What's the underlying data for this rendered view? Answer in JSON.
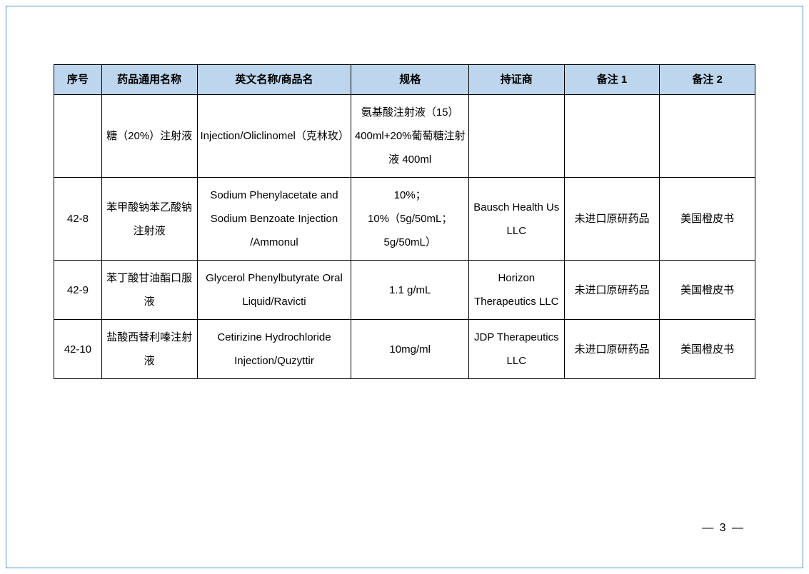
{
  "table": {
    "header_bg": "#bdd6ee",
    "border_color": "#000000",
    "columns": [
      {
        "key": "seq",
        "label": "序号",
        "width": "6.5%"
      },
      {
        "key": "generic",
        "label": "药品通用名称",
        "width": "13%"
      },
      {
        "key": "english",
        "label": "英文名称/商品名",
        "width": "21%"
      },
      {
        "key": "spec",
        "label": "规格",
        "width": "16%"
      },
      {
        "key": "holder",
        "label": "持证商",
        "width": "13%"
      },
      {
        "key": "note1",
        "label": "备注 1",
        "width": "13%"
      },
      {
        "key": "note2",
        "label": "备注 2",
        "width": "13%"
      }
    ],
    "rows": [
      {
        "seq": "",
        "generic": "糖（20%）注射液",
        "english": "Injection/Oliclinomel（克林玫）",
        "spec": "氨基酸注射液（15）400ml+20%葡萄糖注射液 400ml",
        "holder": "",
        "note1": "",
        "note2": ""
      },
      {
        "seq": "42-8",
        "generic": "苯甲酸钠苯乙酸钠注射液",
        "english": "Sodium Phenylacetate and Sodium Benzoate Injection /Ammonul",
        "spec": "10%；10%（5g/50mL；5g/50mL）",
        "holder": "Bausch Health Us LLC",
        "note1": "未进口原研药品",
        "note2": "美国橙皮书"
      },
      {
        "seq": "42-9",
        "generic": "苯丁酸甘油酯口服液",
        "english": "Glycerol Phenylbutyrate Oral Liquid/Ravicti",
        "spec": "1.1 g/mL",
        "holder": "Horizon Therapeutics LLC",
        "note1": "未进口原研药品",
        "note2": "美国橙皮书"
      },
      {
        "seq": "42-10",
        "generic": "盐酸西替利嗪注射液",
        "english": "Cetirizine Hydrochloride Injection/Quzyttir",
        "spec": "10mg/ml",
        "holder": "JDP Therapeutics LLC",
        "note1": "未进口原研药品",
        "note2": "美国橙皮书"
      }
    ]
  },
  "page": {
    "number": "3",
    "number_display": "— 3 —"
  },
  "styling": {
    "page_border_color": "#4a90d9",
    "background_color": "#ffffff",
    "text_color": "#000000",
    "font_family": "Microsoft YaHei",
    "header_font_weight": "bold",
    "cell_font_size": 15,
    "line_height": 2.2
  }
}
